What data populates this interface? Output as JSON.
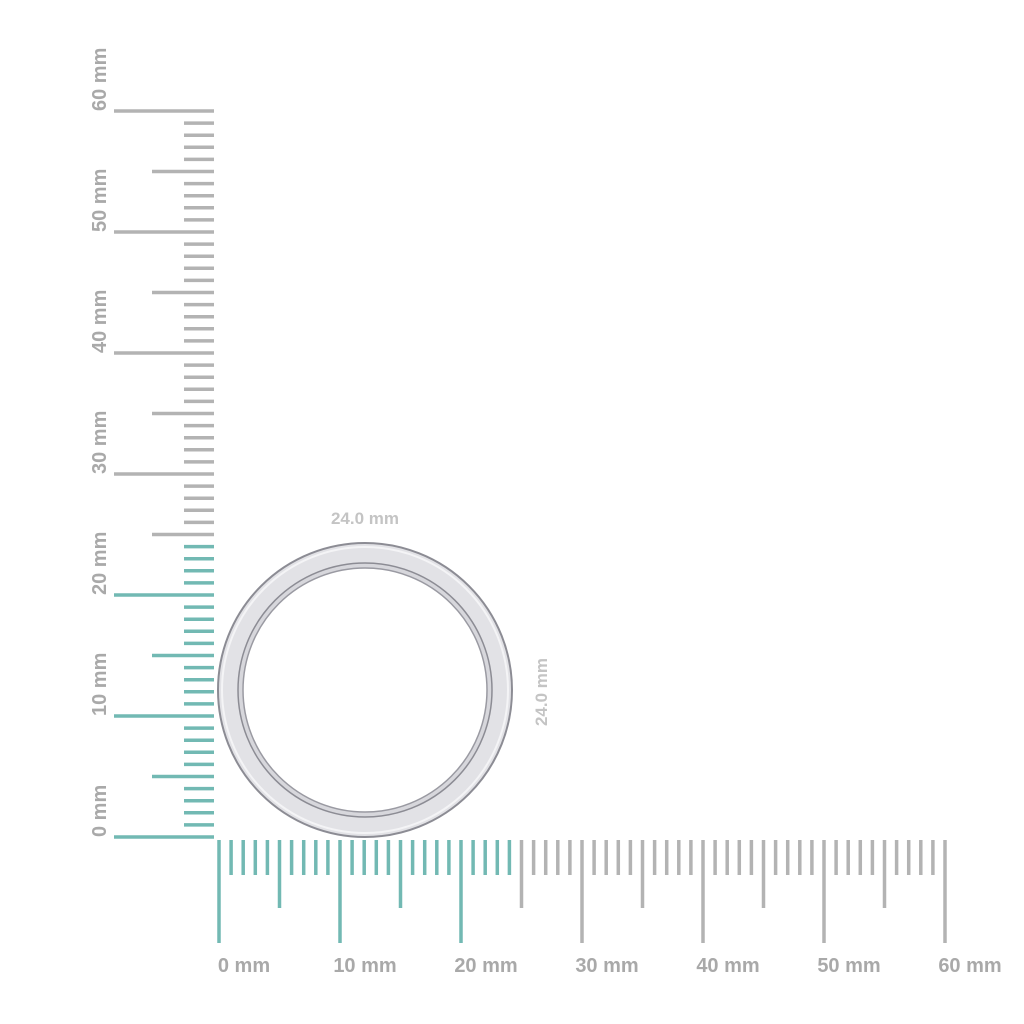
{
  "ruler": {
    "unit": "mm",
    "max_mm": 60,
    "highlight_to_mm": 24,
    "x_labels": [
      "0 mm",
      "10 mm",
      "20 mm",
      "30 mm",
      "40 mm",
      "50 mm",
      "60 mm"
    ],
    "y_labels": [
      "0 mm",
      "10 mm",
      "20 mm",
      "30 mm",
      "40 mm",
      "50 mm",
      "60 mm"
    ]
  },
  "ring": {
    "width_label": "24.0 mm",
    "height_label": "24.0 mm",
    "diameter_mm": 24.0
  },
  "colors": {
    "highlight": "#72b9b3",
    "tick": "#b3b3b3",
    "label": "#a9a9a9",
    "ring": "#e2e2e6",
    "ring_edge": "#8c8c94"
  }
}
